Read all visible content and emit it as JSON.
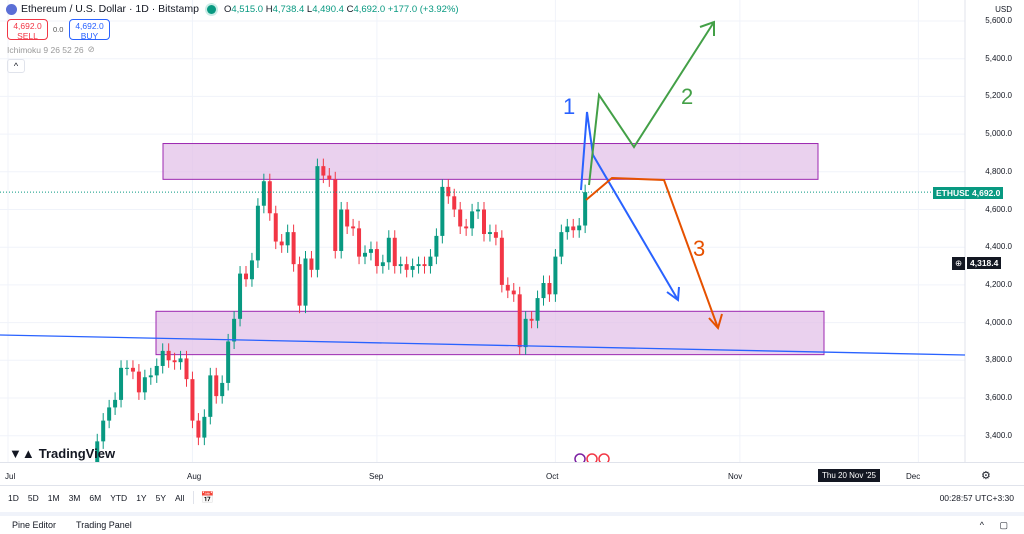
{
  "header": {
    "symbol": "Ethereum / U.S. Dollar · 1D · Bitstamp",
    "open_label": "O",
    "open": "4,515.0",
    "high_label": "H",
    "high": "4,738.4",
    "low_label": "L",
    "low": "4,490.4",
    "close_label": "C",
    "close": "4,692.0",
    "change": "+177.0 (+3.92%)"
  },
  "trade": {
    "sell_price": "4,692.0",
    "sell_label": "SELL",
    "spread": "0.0",
    "buy_price": "4,692.0",
    "buy_label": "BUY"
  },
  "indicator": {
    "label": "Ichimoku 9 26 52 26"
  },
  "collapse_label": "^",
  "logo": "TradingView",
  "price_axis": {
    "currency": "USD",
    "ticks": [
      "5,600.0",
      "5,400.0",
      "5,200.0",
      "5,000.0",
      "4,800.0",
      "4,600.0",
      "4,400.0",
      "4,200.0",
      "4,000.0",
      "3,800.0",
      "3,600.0",
      "3,400.0"
    ],
    "symbol_tag": "ETHUSD",
    "last_price": "4,692.0",
    "crosshair_price": "4,318.4"
  },
  "time_axis": {
    "labels": [
      "Jul",
      "Aug",
      "Sep",
      "Oct",
      "Nov",
      "Dec"
    ],
    "crosshair_date": "Thu 20 Nov '25"
  },
  "ranges": [
    "1D",
    "5D",
    "1M",
    "3M",
    "6M",
    "YTD",
    "1Y",
    "5Y",
    "All"
  ],
  "clock": "00:28:57 UTC+3:30",
  "panels": [
    "Pine Editor",
    "Trading Panel"
  ],
  "annotations": [
    "1",
    "2",
    "3"
  ],
  "colors": {
    "up": "#089981",
    "down": "#f23645",
    "zone": "#e1bee7",
    "zone_border": "#9c27b0",
    "trendline": "#2962ff",
    "path1": "#2962ff",
    "path2": "#43a047",
    "path3": "#e65100"
  },
  "chart_data": {
    "type": "candlestick",
    "ylim": [
      3300,
      5700
    ],
    "zones": [
      [
        4760,
        4950
      ],
      [
        3830,
        4060
      ]
    ],
    "closes": [
      [
        "2025-07-15",
        3150
      ],
      [
        "2025-07-16",
        3370
      ],
      [
        "2025-07-17",
        3480
      ],
      [
        "2025-07-18",
        3550
      ],
      [
        "2025-07-19",
        3590
      ],
      [
        "2025-07-20",
        3760
      ],
      [
        "2025-07-21",
        3760
      ],
      [
        "2025-07-22",
        3740
      ],
      [
        "2025-07-23",
        3630
      ],
      [
        "2025-07-24",
        3710
      ],
      [
        "2025-07-25",
        3720
      ],
      [
        "2025-07-26",
        3770
      ],
      [
        "2025-07-27",
        3850
      ],
      [
        "2025-07-28",
        3800
      ],
      [
        "2025-07-29",
        3790
      ],
      [
        "2025-07-30",
        3810
      ],
      [
        "2025-07-31",
        3700
      ],
      [
        "2025-08-01",
        3480
      ],
      [
        "2025-08-02",
        3390
      ],
      [
        "2025-08-03",
        3500
      ],
      [
        "2025-08-04",
        3720
      ],
      [
        "2025-08-05",
        3610
      ],
      [
        "2025-08-06",
        3680
      ],
      [
        "2025-08-07",
        3900
      ],
      [
        "2025-08-08",
        4020
      ],
      [
        "2025-08-09",
        4260
      ],
      [
        "2025-08-10",
        4230
      ],
      [
        "2025-08-11",
        4330
      ],
      [
        "2025-08-12",
        4620
      ],
      [
        "2025-08-13",
        4750
      ],
      [
        "2025-08-14",
        4580
      ],
      [
        "2025-08-15",
        4430
      ],
      [
        "2025-08-16",
        4410
      ],
      [
        "2025-08-17",
        4480
      ],
      [
        "2025-08-18",
        4310
      ],
      [
        "2025-08-19",
        4090
      ],
      [
        "2025-08-20",
        4340
      ],
      [
        "2025-08-21",
        4280
      ],
      [
        "2025-08-22",
        4830
      ],
      [
        "2025-08-23",
        4780
      ],
      [
        "2025-08-24",
        4760
      ],
      [
        "2025-08-25",
        4380
      ],
      [
        "2025-08-26",
        4600
      ],
      [
        "2025-08-27",
        4510
      ],
      [
        "2025-08-28",
        4500
      ],
      [
        "2025-08-29",
        4350
      ],
      [
        "2025-08-30",
        4370
      ],
      [
        "2025-08-31",
        4390
      ],
      [
        "2025-09-01",
        4300
      ],
      [
        "2025-09-02",
        4320
      ],
      [
        "2025-09-03",
        4450
      ],
      [
        "2025-09-04",
        4300
      ],
      [
        "2025-09-05",
        4310
      ],
      [
        "2025-09-06",
        4280
      ],
      [
        "2025-09-07",
        4300
      ],
      [
        "2025-09-08",
        4310
      ],
      [
        "2025-09-09",
        4300
      ],
      [
        "2025-09-10",
        4350
      ],
      [
        "2025-09-11",
        4460
      ],
      [
        "2025-09-12",
        4720
      ],
      [
        "2025-09-13",
        4670
      ],
      [
        "2025-09-14",
        4600
      ],
      [
        "2025-09-15",
        4510
      ],
      [
        "2025-09-16",
        4500
      ],
      [
        "2025-09-17",
        4590
      ],
      [
        "2025-09-18",
        4600
      ],
      [
        "2025-09-19",
        4470
      ],
      [
        "2025-09-20",
        4480
      ],
      [
        "2025-09-21",
        4450
      ],
      [
        "2025-09-22",
        4200
      ],
      [
        "2025-09-23",
        4170
      ],
      [
        "2025-09-24",
        4150
      ],
      [
        "2025-09-25",
        3870
      ],
      [
        "2025-09-26",
        4020
      ],
      [
        "2025-09-27",
        4010
      ],
      [
        "2025-09-28",
        4130
      ],
      [
        "2025-09-29",
        4210
      ],
      [
        "2025-09-30",
        4150
      ],
      [
        "2025-10-01",
        4350
      ],
      [
        "2025-10-02",
        4480
      ],
      [
        "2025-10-03",
        4510
      ],
      [
        "2025-10-04",
        4490
      ],
      [
        "2025-10-05",
        4515
      ],
      [
        "2025-10-06",
        4692
      ]
    ]
  }
}
